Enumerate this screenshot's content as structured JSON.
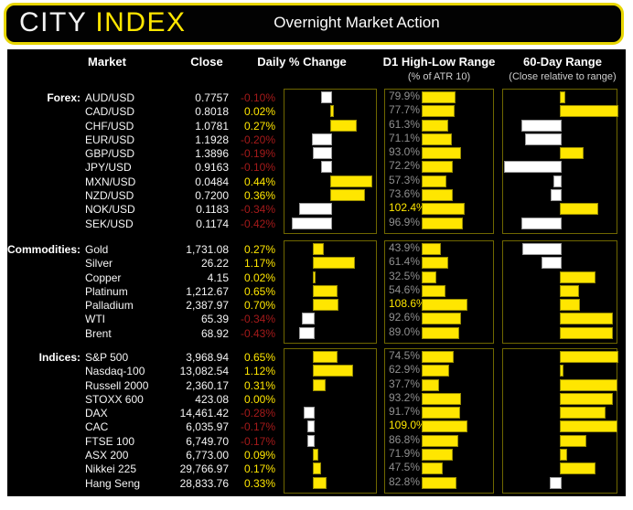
{
  "header": {
    "logo_city": "CITY",
    "logo_index": "INDEX",
    "title": "Overnight Market Action"
  },
  "column_headers": {
    "market": "Market",
    "close": "Close",
    "daily_change": "Daily % Change",
    "d1_range": "D1 High-Low Range",
    "d1_range_sub": "(% of ATR 10)",
    "sixty_day": "60-Day Range",
    "sixty_day_sub": "(Close relative to range)"
  },
  "colors": {
    "accent_yellow": "#ffe600",
    "negative_red": "#a51a1a",
    "label_gray": "#8f8f8f",
    "panel_border": "#6f6700",
    "background": "#000000"
  },
  "chart_data": {
    "type": "table",
    "title": "Overnight Market Action",
    "columns": [
      "Market",
      "Close",
      "Daily % Change",
      "D1 High-Low Range (% of ATR 10)",
      "60-Day Range (Close relative to range)"
    ],
    "legend": "Yellow bars = positive / close in upper half of range; white bars = negative / close in lower half of range; D1 labels over 100% highlighted yellow",
    "sections": [
      {
        "label": "Forex:",
        "daily_axis_min": -0.5,
        "daily_axis_max": 0.5,
        "rows": [
          {
            "market": "AUD/USD",
            "close": "0.7757",
            "daily_change_pct": -0.1,
            "daily_change_label": "-0.10%",
            "d1_atr_pct": 79.9,
            "d1_label": "79.9%",
            "range_position": 0.53
          },
          {
            "market": "CAD/USD",
            "close": "0.8018",
            "daily_change_pct": 0.02,
            "daily_change_label": "0.02%",
            "d1_atr_pct": 77.7,
            "d1_label": "77.7%",
            "range_position": 1.0
          },
          {
            "market": "CHF/USD",
            "close": "1.0781",
            "daily_change_pct": 0.27,
            "daily_change_label": "0.27%",
            "d1_atr_pct": 61.3,
            "d1_label": "61.3%",
            "range_position": 0.16
          },
          {
            "market": "EUR/USD",
            "close": "1.1928",
            "daily_change_pct": -0.2,
            "daily_change_label": "-0.20%",
            "d1_atr_pct": 71.1,
            "d1_label": "71.1%",
            "range_position": 0.19
          },
          {
            "market": "GBP/USD",
            "close": "1.3896",
            "daily_change_pct": -0.19,
            "daily_change_label": "-0.19%",
            "d1_atr_pct": 93.0,
            "d1_label": "93.0%",
            "range_position": 0.69
          },
          {
            "market": "JPY/USD",
            "close": "0.9163",
            "daily_change_pct": -0.1,
            "daily_change_label": "-0.10%",
            "d1_atr_pct": 72.2,
            "d1_label": "72.2%",
            "range_position": 0.01
          },
          {
            "market": "MXN/USD",
            "close": "0.0484",
            "daily_change_pct": 0.44,
            "daily_change_label": "0.44%",
            "d1_atr_pct": 57.3,
            "d1_label": "57.3%",
            "range_position": 0.44
          },
          {
            "market": "NZD/USD",
            "close": "0.7200",
            "daily_change_pct": 0.36,
            "daily_change_label": "0.36%",
            "d1_atr_pct": 73.6,
            "d1_label": "73.6%",
            "range_position": 0.42
          },
          {
            "market": "NOK/USD",
            "close": "0.1183",
            "daily_change_pct": -0.34,
            "daily_change_label": "-0.34%",
            "d1_atr_pct": 102.4,
            "d1_label": "102.4%",
            "range_position": 0.82
          },
          {
            "market": "SEK/USD",
            "close": "0.1174",
            "daily_change_pct": -0.42,
            "daily_change_label": "-0.42%",
            "d1_atr_pct": 96.9,
            "d1_label": "96.9%",
            "range_position": 0.16
          }
        ]
      },
      {
        "label": "Commodities:",
        "daily_axis_min": -0.85,
        "daily_axis_max": 1.85,
        "rows": [
          {
            "market": "Gold",
            "close": "1,731.08",
            "daily_change_pct": 0.27,
            "daily_change_label": "0.27%",
            "d1_atr_pct": 43.9,
            "d1_label": "43.9%",
            "range_position": 0.17
          },
          {
            "market": "Silver",
            "close": "26.22",
            "daily_change_pct": 1.17,
            "daily_change_label": "1.17%",
            "d1_atr_pct": 61.4,
            "d1_label": "61.4%",
            "range_position": 0.34
          },
          {
            "market": "Copper",
            "close": "4.15",
            "daily_change_pct": 0.02,
            "daily_change_label": "0.02%",
            "d1_atr_pct": 32.5,
            "d1_label": "32.5%",
            "range_position": 0.8
          },
          {
            "market": "Platinum",
            "close": "1,212.67",
            "daily_change_pct": 0.65,
            "daily_change_label": "0.65%",
            "d1_atr_pct": 54.6,
            "d1_label": "54.6%",
            "range_position": 0.65
          },
          {
            "market": "Palladium",
            "close": "2,387.97",
            "daily_change_pct": 0.7,
            "daily_change_label": "0.70%",
            "d1_atr_pct": 108.6,
            "d1_label": "108.6%",
            "range_position": 0.66
          },
          {
            "market": "WTI",
            "close": "65.39",
            "daily_change_pct": -0.34,
            "daily_change_label": "-0.34%",
            "d1_atr_pct": 92.6,
            "d1_label": "92.6%",
            "range_position": 0.95
          },
          {
            "market": "Brent",
            "close": "68.92",
            "daily_change_pct": -0.43,
            "daily_change_label": "-0.43%",
            "d1_atr_pct": 89.0,
            "d1_label": "89.0%",
            "range_position": 0.95
          }
        ]
      },
      {
        "label": "Indices:",
        "daily_axis_min": -0.85,
        "daily_axis_max": 1.85,
        "rows": [
          {
            "market": "S&P 500",
            "close": "3,968.94",
            "daily_change_pct": 0.65,
            "daily_change_label": "0.65%",
            "d1_atr_pct": 74.5,
            "d1_label": "74.5%",
            "range_position": 1.0
          },
          {
            "market": "Nasdaq-100",
            "close": "13,082.54",
            "daily_change_pct": 1.12,
            "daily_change_label": "1.12%",
            "d1_atr_pct": 62.9,
            "d1_label": "62.9%",
            "range_position": 0.52
          },
          {
            "market": "Russell 2000",
            "close": "2,360.17",
            "daily_change_pct": 0.31,
            "daily_change_label": "0.31%",
            "d1_atr_pct": 37.7,
            "d1_label": "37.7%",
            "range_position": 0.99
          },
          {
            "market": "STOXX 600",
            "close": "423.08",
            "daily_change_pct": 0.0,
            "daily_change_label": "0.00%",
            "d1_atr_pct": 93.2,
            "d1_label": "93.2%",
            "range_position": 0.95
          },
          {
            "market": "DAX",
            "close": "14,461.42",
            "daily_change_pct": -0.28,
            "daily_change_label": "-0.28%",
            "d1_atr_pct": 91.7,
            "d1_label": "91.7%",
            "range_position": 0.89
          },
          {
            "market": "CAC",
            "close": "6,035.97",
            "daily_change_pct": -0.17,
            "daily_change_label": "-0.17%",
            "d1_atr_pct": 109.0,
            "d1_label": "109.0%",
            "range_position": 0.99
          },
          {
            "market": "FTSE 100",
            "close": "6,749.70",
            "daily_change_pct": -0.17,
            "daily_change_label": "-0.17%",
            "d1_atr_pct": 86.8,
            "d1_label": "86.8%",
            "range_position": 0.72
          },
          {
            "market": "ASX 200",
            "close": "6,773.00",
            "daily_change_pct": 0.09,
            "daily_change_label": "0.09%",
            "d1_atr_pct": 71.9,
            "d1_label": "71.9%",
            "range_position": 0.55
          },
          {
            "market": "Nikkei 225",
            "close": "29,766.97",
            "daily_change_pct": 0.17,
            "daily_change_label": "0.17%",
            "d1_atr_pct": 47.5,
            "d1_label": "47.5%",
            "range_position": 0.8
          },
          {
            "market": "Hang Seng",
            "close": "28,833.76",
            "daily_change_pct": 0.33,
            "daily_change_label": "0.33%",
            "d1_atr_pct": 82.8,
            "d1_label": "82.8%",
            "range_position": 0.41
          }
        ]
      }
    ]
  }
}
